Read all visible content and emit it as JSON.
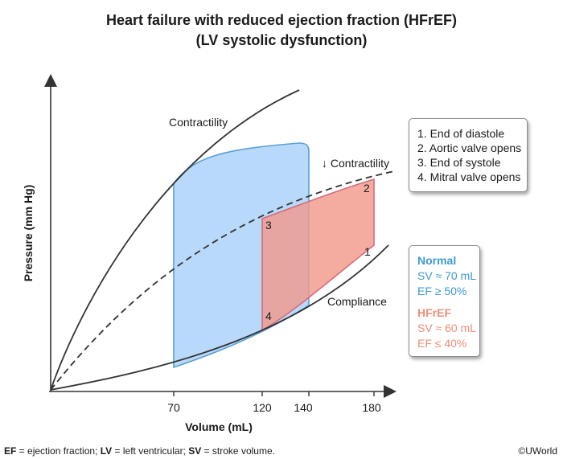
{
  "title": {
    "line1": "Heart failure with reduced ejection fraction (HFrEF)",
    "line2": "(LV systolic dysfunction)"
  },
  "axes": {
    "y_label": "Pressure (mm Hg)",
    "x_label": "Volume (mL)",
    "x_ticks": [
      "70",
      "120",
      "140",
      "180"
    ]
  },
  "curves": {
    "contractility": "Contractility",
    "reduced_contractility": "↓ Contractility",
    "compliance": "Compliance"
  },
  "points": [
    "1",
    "2",
    "3",
    "4"
  ],
  "steps": [
    "1. End of diastole",
    "2. Aortic valve opens",
    "3. End of systole",
    "4. Mitral valve opens"
  ],
  "comparison": {
    "normal": {
      "heading": "Normal",
      "sv": "SV ≈ 70 mL",
      "ef": "EF ≥ 50%"
    },
    "hfref": {
      "heading": "HFrEF",
      "sv": "SV ≈ 60 mL",
      "ef": "EF ≤ 40%"
    }
  },
  "footnote": {
    "ef_abbr": "EF",
    "ef_text": " = ejection fraction; ",
    "lv_abbr": "LV",
    "lv_text": " = left ventricular; ",
    "sv_abbr": "SV",
    "sv_text": " = stroke volume."
  },
  "copyright": "©UWorld",
  "colors": {
    "normal_fill": "#b9d9fb",
    "normal_stroke": "#5aa0d6",
    "hfref_fill": "#f7a99b",
    "hfref_stroke": "#d46b7c",
    "normal_text": "#3d9ad1",
    "hfref_text": "#ee8c79"
  }
}
